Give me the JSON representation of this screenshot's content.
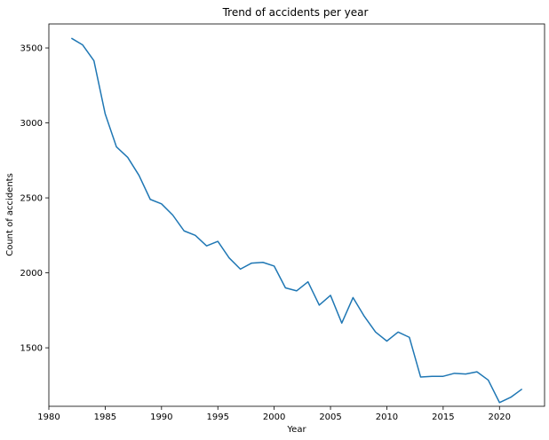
{
  "chart_data": {
    "type": "line",
    "title": "Trend of accidents per year",
    "xlabel": "Year",
    "ylabel": "Count of accidents",
    "xlim": [
      1980,
      2024
    ],
    "ylim": [
      1110,
      3660
    ],
    "xticks": [
      1980,
      1985,
      1990,
      1995,
      2000,
      2005,
      2010,
      2015,
      2020
    ],
    "yticks": [
      1500,
      2000,
      2500,
      3000,
      3500
    ],
    "grid": false,
    "line_color": "#1f77b4",
    "series": [
      {
        "x": [
          1982,
          1983,
          1984,
          1985,
          1986,
          1987,
          1988,
          1989,
          1990,
          1991,
          1992,
          1993,
          1994,
          1995,
          1996,
          1997,
          1998,
          1999,
          2000,
          2001,
          2002,
          2003,
          2004,
          2005,
          2006,
          2007,
          2008,
          2009,
          2010,
          2011,
          2012,
          2013,
          2014,
          2015,
          2016,
          2017,
          2018,
          2019,
          2020,
          2021,
          2022
        ],
        "values": [
          3565,
          3520,
          3415,
          3060,
          2840,
          2770,
          2650,
          2490,
          2460,
          2385,
          2280,
          2250,
          2180,
          2210,
          2100,
          2025,
          2065,
          2070,
          2045,
          1900,
          1880,
          1940,
          1785,
          1850,
          1665,
          1835,
          1710,
          1605,
          1545,
          1605,
          1570,
          1305,
          1310,
          1310,
          1330,
          1325,
          1340,
          1285,
          1135,
          1170,
          1225
        ]
      }
    ]
  }
}
